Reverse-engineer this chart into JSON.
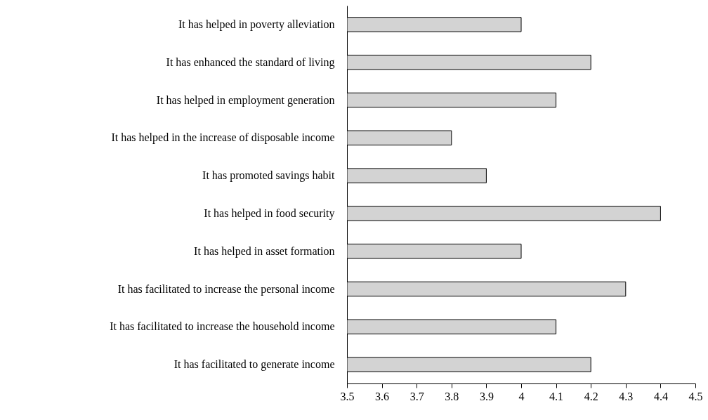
{
  "chart_data": {
    "type": "bar",
    "orientation": "horizontal",
    "categories": [
      "It has helped in poverty alleviation",
      "It has enhanced the standard of living",
      "It has helped in employment generation",
      "It has helped in the increase of disposable income",
      "It has promoted savings habit",
      "It has helped in food security",
      "It has helped in asset formation",
      "It has facilitated to increase the personal income",
      "It has facilitated to increase the household income",
      "It has facilitated to generate income"
    ],
    "values": [
      4.0,
      4.2,
      4.1,
      3.8,
      3.9,
      4.4,
      4.0,
      4.3,
      4.1,
      4.2
    ],
    "color": "#d3d3d3",
    "xlim": [
      3.5,
      4.5
    ],
    "xticks": [
      3.5,
      3.6,
      3.7,
      3.8,
      3.9,
      4,
      4.1,
      4.2,
      4.3,
      4.4,
      4.5
    ],
    "grid": false,
    "legend": false
  }
}
